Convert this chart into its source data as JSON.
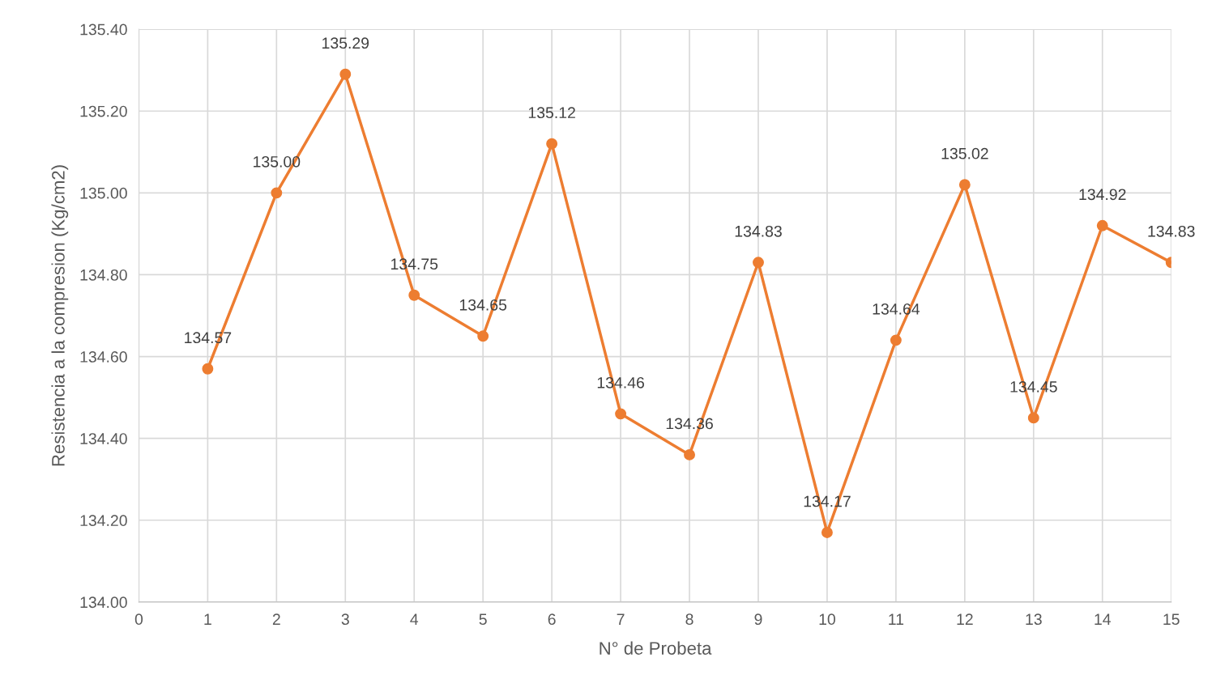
{
  "chart_data": {
    "type": "line",
    "xlabel": "N° de Probeta",
    "ylabel": "Resistencia a la compresion (Kg/cm2)",
    "x": [
      1,
      2,
      3,
      4,
      5,
      6,
      7,
      8,
      9,
      10,
      11,
      12,
      13,
      14,
      15
    ],
    "series": [
      {
        "color": "#ed7d31",
        "values": [
          134.57,
          135.0,
          135.29,
          134.75,
          134.65,
          135.12,
          134.46,
          134.36,
          134.83,
          134.17,
          134.64,
          135.02,
          134.45,
          134.92,
          134.83
        ],
        "value_labels": [
          "134.57",
          "135.00",
          "135.29",
          "134.75",
          "134.65",
          "135.12",
          "134.46",
          "134.36",
          "134.83",
          "134.17",
          "134.64",
          "135.02",
          "134.45",
          "134.92",
          "134.83"
        ]
      }
    ],
    "xlim": [
      0,
      15
    ],
    "xticks": [
      0,
      1,
      2,
      3,
      4,
      5,
      6,
      7,
      8,
      9,
      10,
      11,
      12,
      13,
      14,
      15
    ],
    "ylim": [
      134.0,
      135.4
    ],
    "yticks": [
      {
        "value": 134.0,
        "label": "134.00"
      },
      {
        "value": 134.2,
        "label": "134.20"
      },
      {
        "value": 134.4,
        "label": "134.40"
      },
      {
        "value": 134.6,
        "label": "134.60"
      },
      {
        "value": 134.8,
        "label": "134.80"
      },
      {
        "value": 135.0,
        "label": "135.00"
      },
      {
        "value": 135.2,
        "label": "135.20"
      },
      {
        "value": 135.4,
        "label": "135.40"
      }
    ],
    "grid": true,
    "marker": "circle",
    "line_style": "solid",
    "legend": false
  }
}
